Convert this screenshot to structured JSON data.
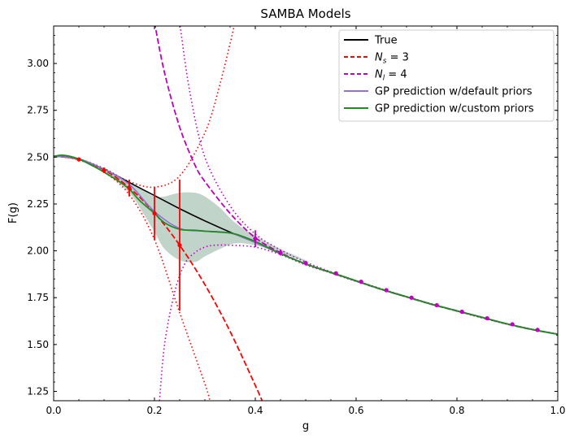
{
  "chart_data": {
    "type": "line",
    "title": "SAMBA Models",
    "xlabel": "g",
    "ylabel": "F(g)",
    "xlim": [
      0.0,
      1.0
    ],
    "ylim": [
      1.2,
      3.2
    ],
    "xticks": [
      "0.0",
      "0.2",
      "0.4",
      "0.6",
      "0.8",
      "1.0"
    ],
    "yticks": [
      "1.25",
      "1.50",
      "1.75",
      "2.00",
      "2.25",
      "2.50",
      "2.75",
      "3.00"
    ],
    "legend_position": "top-right",
    "legend": [
      {
        "label": "True",
        "tex_base": "",
        "tex_sub": "",
        "tex_rest": "",
        "color": "#000000",
        "dash": "solid"
      },
      {
        "label": "",
        "tex_base": "N",
        "tex_sub": "s",
        "tex_rest": " = 3",
        "color": "#ff0000",
        "dash": "dashed"
      },
      {
        "label": "",
        "tex_base": "N",
        "tex_sub": "l",
        "tex_rest": " = 4",
        "color": "#bf00bf",
        "dash": "dashed"
      },
      {
        "label": "GP prediction w/default priors",
        "tex_base": "",
        "tex_sub": "",
        "tex_rest": "",
        "color": "#9370db",
        "dash": "solid"
      },
      {
        "label": "GP prediction w/custom priors",
        "tex_base": "",
        "tex_sub": "",
        "tex_rest": "",
        "color": "#228b22",
        "dash": "solid"
      }
    ],
    "series": {
      "band": {
        "color": "#2f6f4f",
        "x": [
          0.0,
          0.05,
          0.1,
          0.15,
          0.18,
          0.2,
          0.22,
          0.25,
          0.28,
          0.3,
          0.33,
          0.36,
          0.4,
          0.45,
          0.5,
          0.55,
          1.0
        ],
        "upper": [
          2.51,
          2.49,
          2.44,
          2.37,
          2.32,
          2.29,
          2.29,
          2.31,
          2.31,
          2.29,
          2.23,
          2.15,
          2.08,
          2.01,
          1.95,
          1.89,
          1.555
        ],
        "lower": [
          2.51,
          2.49,
          2.42,
          2.31,
          2.19,
          2.1,
          2.01,
          1.95,
          1.94,
          1.97,
          2.01,
          2.04,
          2.03,
          1.99,
          1.94,
          1.89,
          1.555
        ]
      },
      "true": {
        "x": [
          0.0,
          0.05,
          0.1,
          0.15,
          0.2,
          0.25,
          0.3,
          0.35,
          0.4,
          0.45,
          0.5,
          0.55,
          0.6,
          0.65,
          0.7,
          0.75,
          0.8,
          0.85,
          0.9,
          0.95,
          1.0
        ],
        "y": [
          2.505,
          2.49,
          2.435,
          2.365,
          2.295,
          2.225,
          2.16,
          2.1,
          2.045,
          1.985,
          1.93,
          1.885,
          1.84,
          1.795,
          1.755,
          1.715,
          1.68,
          1.645,
          1.61,
          1.58,
          1.555
        ]
      },
      "gp_custom": {
        "x": [
          0.0,
          0.02,
          0.05,
          0.08,
          0.1,
          0.13,
          0.15,
          0.17,
          0.2,
          0.22,
          0.25,
          0.28,
          0.3,
          0.33,
          0.36,
          0.4,
          0.45,
          0.5,
          0.55,
          0.6,
          0.65,
          0.7,
          0.75,
          0.8,
          0.85,
          0.9,
          0.95,
          1.0
        ],
        "y": [
          2.505,
          2.51,
          2.49,
          2.45,
          2.42,
          2.37,
          2.33,
          2.27,
          2.2,
          2.15,
          2.115,
          2.11,
          2.105,
          2.1,
          2.09,
          2.05,
          1.985,
          1.93,
          1.885,
          1.84,
          1.795,
          1.755,
          1.715,
          1.68,
          1.645,
          1.61,
          1.58,
          1.555
        ]
      },
      "gp_default": {
        "x": [
          0.0,
          0.05,
          0.1,
          0.15,
          0.2,
          0.25,
          0.3,
          0.35,
          0.4,
          0.45,
          0.5,
          0.55,
          0.6,
          0.65,
          0.7,
          0.75,
          0.8,
          0.85,
          0.9,
          0.95,
          1.0
        ],
        "y": [
          2.505,
          2.49,
          2.435,
          2.355,
          2.21,
          2.12,
          2.105,
          2.095,
          2.045,
          1.985,
          1.93,
          1.885,
          1.84,
          1.795,
          1.755,
          1.715,
          1.68,
          1.645,
          1.61,
          1.58,
          1.555
        ]
      },
      "ns_mean": {
        "x": [
          0.0,
          0.05,
          0.1,
          0.15,
          0.2,
          0.25,
          0.3,
          0.35,
          0.4,
          0.42
        ],
        "y": [
          2.506,
          2.488,
          2.432,
          2.337,
          2.203,
          2.03,
          1.82,
          1.57,
          1.282,
          1.16
        ]
      },
      "ns_upper": {
        "x": [
          0.0,
          0.05,
          0.1,
          0.15,
          0.2,
          0.25,
          0.3,
          0.33,
          0.36
        ],
        "y": [
          2.506,
          2.49,
          2.44,
          2.37,
          2.34,
          2.4,
          2.63,
          2.89,
          3.22
        ]
      },
      "ns_lower": {
        "x": [
          0.0,
          0.05,
          0.1,
          0.15,
          0.2,
          0.25,
          0.3,
          0.31
        ],
        "y": [
          2.506,
          2.485,
          2.42,
          2.3,
          2.06,
          1.67,
          1.29,
          1.2
        ]
      },
      "nl_mean": {
        "x": [
          0.2,
          0.22,
          0.25,
          0.28,
          0.3,
          0.35,
          0.4,
          0.45,
          0.5,
          0.55,
          0.6,
          0.65,
          0.7,
          0.75,
          0.8,
          0.85,
          0.9,
          0.95,
          1.0
        ],
        "y": [
          3.22,
          2.95,
          2.66,
          2.46,
          2.37,
          2.2,
          2.07,
          1.99,
          1.93,
          1.884,
          1.839,
          1.794,
          1.754,
          1.714,
          1.679,
          1.644,
          1.609,
          1.579,
          1.555
        ]
      },
      "nl_upper": {
        "x": [
          0.25,
          0.27,
          0.3,
          0.35,
          0.4,
          0.45,
          0.5,
          0.55,
          0.6,
          0.7,
          0.8,
          0.9,
          1.0
        ],
        "y": [
          3.22,
          2.85,
          2.5,
          2.24,
          2.09,
          2.005,
          1.94,
          1.888,
          1.841,
          1.756,
          1.68,
          1.61,
          1.555
        ]
      },
      "nl_lower": {
        "x": [
          0.21,
          0.22,
          0.24,
          0.26,
          0.28,
          0.3,
          0.32,
          0.35,
          0.4,
          0.45,
          0.5,
          0.55,
          0.6,
          0.7,
          0.8,
          0.9,
          1.0
        ],
        "y": [
          1.2,
          1.5,
          1.78,
          1.93,
          1.99,
          2.02,
          2.03,
          2.03,
          2.02,
          1.98,
          1.925,
          1.882,
          1.837,
          1.753,
          1.678,
          1.608,
          1.555
        ]
      },
      "ns_points": [
        {
          "x": 0.05,
          "y": 2.488,
          "err": 0.0
        },
        {
          "x": 0.1,
          "y": 2.43,
          "err": 0.015
        },
        {
          "x": 0.15,
          "y": 2.335,
          "err": 0.045
        },
        {
          "x": 0.2,
          "y": 2.2,
          "err": 0.14
        },
        {
          "x": 0.25,
          "y": 2.03,
          "err": 0.35
        }
      ],
      "nl_points": [
        {
          "x": 0.4,
          "y": 2.065,
          "err": 0.045
        },
        {
          "x": 0.45,
          "y": 1.99,
          "err": 0.015
        },
        {
          "x": 0.5,
          "y": 1.935,
          "err": 0.005
        },
        {
          "x": 0.56,
          "y": 1.88,
          "err": 0.0
        },
        {
          "x": 0.61,
          "y": 1.835,
          "err": 0.0
        },
        {
          "x": 0.66,
          "y": 1.79,
          "err": 0.0
        },
        {
          "x": 0.71,
          "y": 1.75,
          "err": 0.0
        },
        {
          "x": 0.76,
          "y": 1.71,
          "err": 0.0
        },
        {
          "x": 0.81,
          "y": 1.675,
          "err": 0.0
        },
        {
          "x": 0.86,
          "y": 1.64,
          "err": 0.0
        },
        {
          "x": 0.91,
          "y": 1.608,
          "err": 0.0
        },
        {
          "x": 0.96,
          "y": 1.578,
          "err": 0.0
        }
      ]
    }
  }
}
